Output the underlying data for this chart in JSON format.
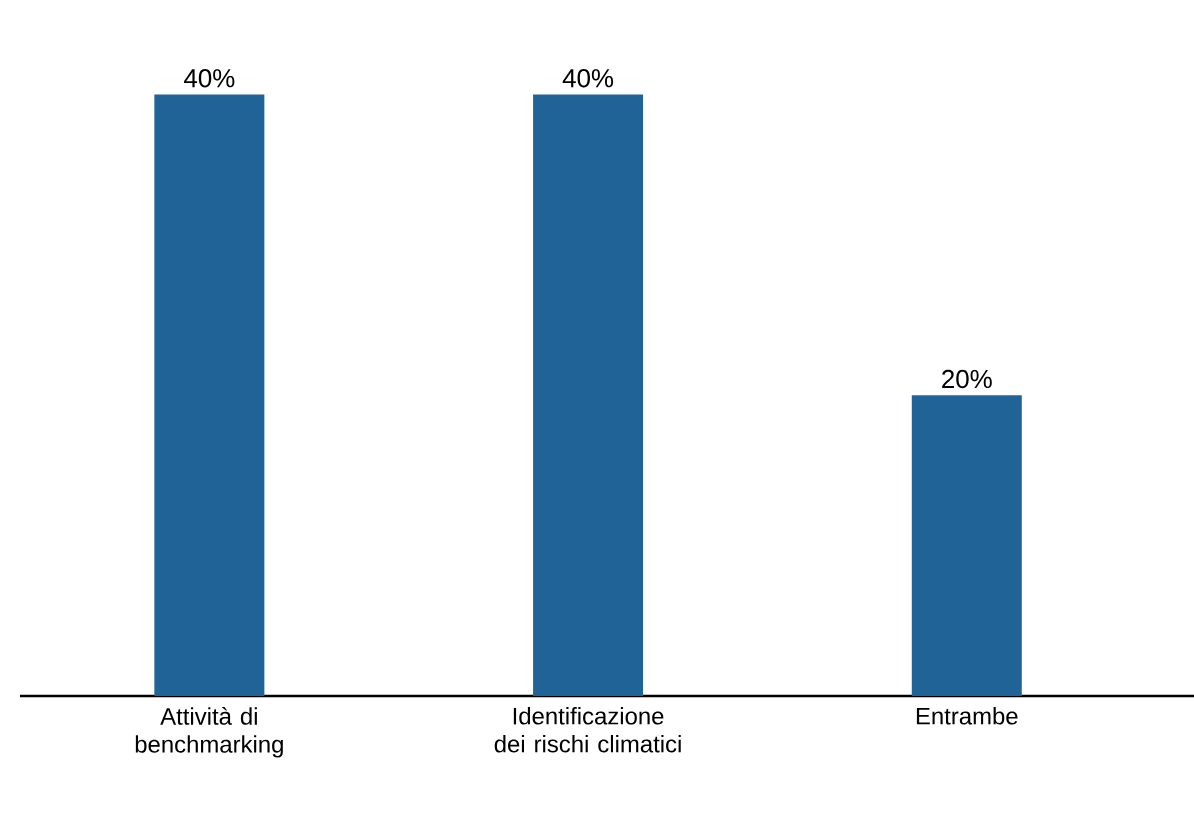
{
  "chart_data": {
    "type": "bar",
    "categories": [
      "Attività di benchmarking",
      "Identificazione dei rischi climatici",
      "Entrambe"
    ],
    "values": [
      40,
      40,
      20
    ],
    "value_labels": [
      "40%",
      "40%",
      "20%"
    ],
    "color": "#1f6397"
  }
}
